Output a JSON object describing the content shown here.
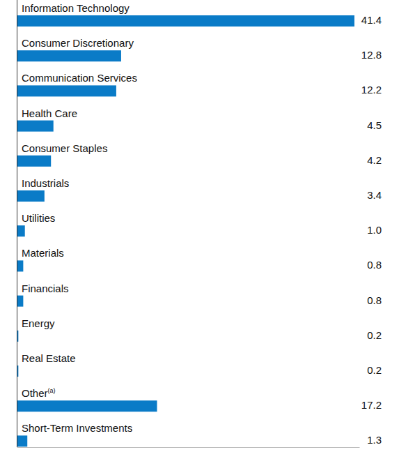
{
  "chart_data": {
    "type": "bar",
    "orientation": "horizontal",
    "categories": [
      "Information Technology",
      "Consumer Discretionary",
      "Communication Services",
      "Health Care",
      "Consumer Staples",
      "Industrials",
      "Utilities",
      "Materials",
      "Financials",
      "Energy",
      "Real Estate",
      "Other(a)",
      "Short-Term Investments"
    ],
    "values": [
      41.4,
      12.8,
      12.2,
      4.5,
      4.2,
      3.4,
      1.0,
      0.8,
      0.8,
      0.2,
      0.2,
      17.2,
      1.3
    ],
    "value_labels": [
      "41.4",
      "12.8",
      "12.2",
      "4.5",
      "4.2",
      "3.4",
      "1.0",
      "0.8",
      "0.8",
      "0.2",
      "0.2",
      "17.2",
      "1.3"
    ],
    "color": "#0a7bc7",
    "xlim": [
      0,
      42
    ],
    "data_labels": true,
    "tick_labels": false
  }
}
